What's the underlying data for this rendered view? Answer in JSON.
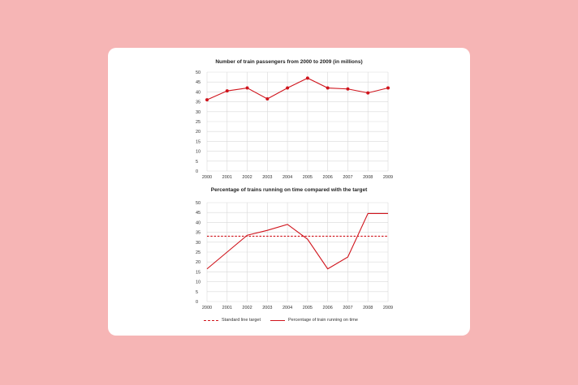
{
  "colors": {
    "background": "#f6b5b5",
    "card": "#ffffff",
    "series": "#d0141c",
    "grid": "#d9d9d9"
  },
  "chart_data": [
    {
      "type": "line",
      "title": "Number of train passengers from 2000 to 2009 (in millions)",
      "x": [
        "2000",
        "2001",
        "2002",
        "2003",
        "2004",
        "2005",
        "2006",
        "2007",
        "2008",
        "2009"
      ],
      "ylim": [
        0,
        50
      ],
      "yticks": [
        0,
        5,
        10,
        15,
        20,
        25,
        30,
        35,
        40,
        45,
        50
      ],
      "grid": true,
      "markers": true,
      "series": [
        {
          "values": [
            36,
            40.5,
            42,
            36.5,
            42,
            47,
            42,
            41.5,
            39.5,
            42
          ]
        }
      ]
    },
    {
      "type": "line",
      "title": "Percentage of trains running on time compared with the target",
      "x": [
        "2000",
        "2001",
        "2002",
        "2003",
        "2004",
        "2005",
        "2006",
        "2007",
        "2008",
        "2009"
      ],
      "ylim": [
        0,
        50
      ],
      "yticks": [
        0,
        5,
        10,
        15,
        20,
        25,
        30,
        35,
        40,
        45,
        50
      ],
      "grid": true,
      "legend": "bottom",
      "series": [
        {
          "name": "Standard line target",
          "style": "dashed",
          "values": [
            33,
            33,
            33,
            33,
            33,
            33,
            33,
            33,
            33,
            33
          ]
        },
        {
          "name": "Percentage of train running on time",
          "style": "solid",
          "values": [
            16.5,
            25,
            33.5,
            36,
            39,
            31.5,
            16.5,
            22.5,
            44.5,
            44.5
          ]
        }
      ]
    }
  ]
}
